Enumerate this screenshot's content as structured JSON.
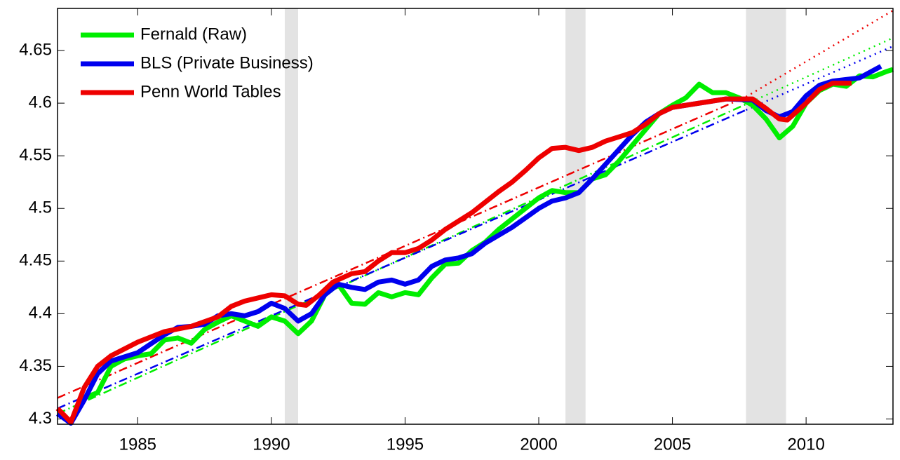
{
  "chart_data": {
    "type": "line",
    "xlim": [
      1982,
      2013.25
    ],
    "ylim": [
      4.295,
      4.69
    ],
    "xticks": [
      1985,
      1990,
      1995,
      2000,
      2005,
      2010
    ],
    "yticks": [
      4.3,
      4.35,
      4.4,
      4.45,
      4.5,
      4.55,
      4.6,
      4.65
    ],
    "legend": "upper-left",
    "recession_color": "#e3e3e3",
    "recessions": [
      [
        1990.5,
        1991
      ],
      [
        2001,
        2001.75
      ],
      [
        2007.75,
        2009.25
      ]
    ],
    "trend_styles": [
      "dashdot",
      "dotted"
    ],
    "trends": [
      {
        "color": "#00ee00",
        "x": [
          1982,
          2007.75,
          2013.25
        ],
        "values": [
          4.305,
          4.599,
          4.662
        ]
      },
      {
        "color": "#0000ee",
        "x": [
          1982,
          2007.75,
          2013.25
        ],
        "values": [
          4.31,
          4.5935,
          4.654
        ]
      },
      {
        "color": "#ee0000",
        "x": [
          1982,
          2007.75,
          2013.25
        ],
        "values": [
          4.32,
          4.606,
          4.688
        ]
      }
    ],
    "series": [
      {
        "name": "Fernald (Raw)",
        "color": "#00ee00",
        "x": [
          1982,
          1982.5,
          1983,
          1983.5,
          1984,
          1984.5,
          1985,
          1985.5,
          1986,
          1986.5,
          1987,
          1987.5,
          1988,
          1988.5,
          1989,
          1989.5,
          1990,
          1990.5,
          1991,
          1991.5,
          1992,
          1992.5,
          1993,
          1993.5,
          1994,
          1994.5,
          1995,
          1995.5,
          1996,
          1996.5,
          1997,
          1997.5,
          1998,
          1998.5,
          1999,
          1999.5,
          2000,
          2000.5,
          2001,
          2001.5,
          2002,
          2002.5,
          2003,
          2003.5,
          2004,
          2004.5,
          2005,
          2005.5,
          2006,
          2006.5,
          2007,
          2007.5,
          2008,
          2008.5,
          2009,
          2009.5,
          2010,
          2010.5,
          2011,
          2011.5,
          2012,
          2012.5,
          2013,
          2013.25
        ],
        "values": [
          4.305,
          4.298,
          4.32,
          4.325,
          4.35,
          4.357,
          4.36,
          4.362,
          4.375,
          4.377,
          4.372,
          4.385,
          4.392,
          4.398,
          4.393,
          4.388,
          4.397,
          4.393,
          4.381,
          4.393,
          4.418,
          4.428,
          4.41,
          4.409,
          4.42,
          4.416,
          4.42,
          4.418,
          4.434,
          4.447,
          4.448,
          4.46,
          4.468,
          4.48,
          4.49,
          4.5,
          4.51,
          4.517,
          4.515,
          4.515,
          4.528,
          4.532,
          4.545,
          4.56,
          4.575,
          4.59,
          4.598,
          4.605,
          4.618,
          4.61,
          4.61,
          4.605,
          4.598,
          4.585,
          4.567,
          4.578,
          4.6,
          4.612,
          4.618,
          4.616,
          4.626,
          4.625,
          4.63,
          4.632
        ]
      },
      {
        "name": "BLS (Private Business)",
        "color": "#0000ee",
        "x": [
          1982,
          1982.5,
          1983,
          1983.5,
          1984,
          1985,
          1986,
          1986.5,
          1987,
          1987.5,
          1988,
          1988.5,
          1989,
          1989.5,
          1990,
          1990.5,
          1991,
          1991.5,
          1992,
          1992.5,
          1993,
          1993.5,
          1994,
          1994.5,
          1995,
          1995.5,
          1996,
          1996.5,
          1997,
          1997.5,
          1998,
          1999,
          2000,
          2000.5,
          2001,
          2001.5,
          2002,
          2002.5,
          2003,
          2003.5,
          2004,
          2004.5,
          2005,
          2006,
          2007,
          2008,
          2008.5,
          2009,
          2009.5,
          2010,
          2010.5,
          2011,
          2012,
          2012.8
        ],
        "values": [
          4.305,
          4.296,
          4.318,
          4.343,
          4.355,
          4.363,
          4.38,
          4.387,
          4.388,
          4.39,
          4.398,
          4.4,
          4.398,
          4.402,
          4.41,
          4.405,
          4.393,
          4.4,
          4.418,
          4.428,
          4.425,
          4.423,
          4.43,
          4.432,
          4.428,
          4.432,
          4.445,
          4.451,
          4.453,
          4.457,
          4.467,
          4.482,
          4.5,
          4.507,
          4.51,
          4.515,
          4.528,
          4.542,
          4.556,
          4.57,
          4.582,
          4.59,
          4.596,
          4.6,
          4.604,
          4.603,
          4.593,
          4.587,
          4.592,
          4.607,
          4.617,
          4.621,
          4.624,
          4.635
        ]
      },
      {
        "name": "Penn World Tables",
        "color": "#ee0000",
        "x": [
          1982,
          1982.5,
          1983,
          1983.5,
          1984,
          1985,
          1986,
          1987,
          1988,
          1988.5,
          1989,
          1990,
          1990.5,
          1991,
          1991.3,
          1991.8,
          1992.3,
          1993,
          1993.5,
          1994,
          1994.5,
          1995,
          1995.5,
          1996,
          1996.5,
          1997,
          1997.5,
          1998,
          1998.5,
          1999,
          1999.5,
          2000,
          2000.5,
          2001,
          2001.5,
          2002,
          2002.5,
          2003,
          2003.5,
          2004,
          2004.5,
          2005,
          2006,
          2007,
          2008,
          2008.5,
          2009,
          2009.3,
          2010,
          2010.5,
          2011,
          2011.7
        ],
        "values": [
          4.31,
          4.297,
          4.33,
          4.35,
          4.36,
          4.373,
          4.383,
          4.388,
          4.397,
          4.407,
          4.412,
          4.418,
          4.417,
          4.409,
          4.408,
          4.418,
          4.43,
          4.438,
          4.44,
          4.45,
          4.458,
          4.458,
          4.462,
          4.47,
          4.48,
          4.488,
          4.496,
          4.506,
          4.516,
          4.525,
          4.536,
          4.548,
          4.557,
          4.558,
          4.555,
          4.558,
          4.564,
          4.568,
          4.572,
          4.58,
          4.59,
          4.596,
          4.6,
          4.604,
          4.604,
          4.595,
          4.585,
          4.584,
          4.6,
          4.613,
          4.619,
          4.619
        ]
      }
    ]
  }
}
